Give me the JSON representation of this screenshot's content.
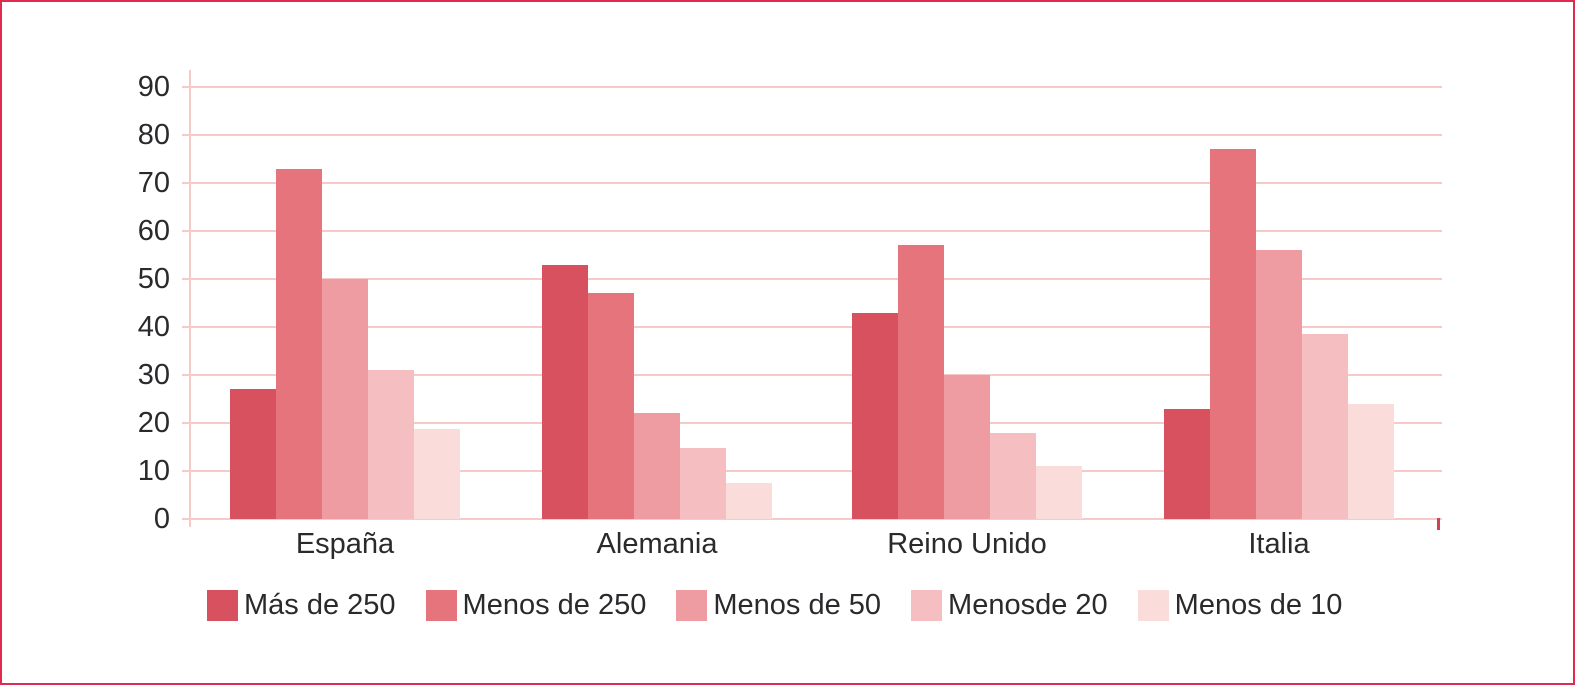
{
  "frame": {
    "border_color": "#e22a50",
    "background_color": "#ffffff",
    "text_color": "#2b292c"
  },
  "chart_data": {
    "type": "bar",
    "title": "",
    "xlabel": "",
    "ylabel": "",
    "categories": [
      "España",
      "Alemania",
      "Reino Unido",
      "Italia"
    ],
    "series": [
      {
        "name": "Más de 250",
        "color": "#d8515f",
        "values": [
          27,
          53,
          43,
          23
        ]
      },
      {
        "name": "Menos de 250",
        "color": "#e5747c",
        "values": [
          73,
          47,
          57,
          77
        ]
      },
      {
        "name": "Menos de 50",
        "color": "#ee9ba1",
        "values": [
          50,
          22,
          30,
          56
        ]
      },
      {
        "name": "Menosde 20",
        "color": "#f5bec0",
        "values": [
          31,
          14.7,
          18,
          38.5
        ]
      },
      {
        "name": "Menos de 10",
        "color": "#fadcdb",
        "values": [
          18.7,
          7.5,
          11,
          24
        ]
      }
    ],
    "ylim": [
      0,
      90
    ],
    "yticks": [
      0,
      10,
      20,
      30,
      40,
      50,
      60,
      70,
      80,
      90
    ],
    "grid": true,
    "gridline_color": "#f6cac7",
    "axis_line_color": "#f6cac7",
    "axis_end_tick_color": "#d04350",
    "legend_position": "bottom"
  }
}
